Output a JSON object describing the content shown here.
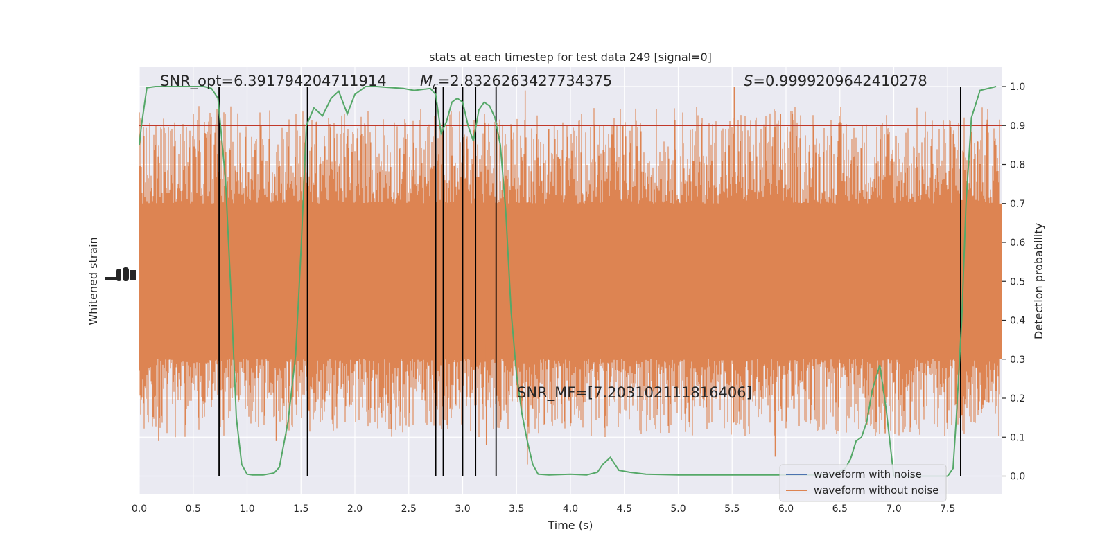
{
  "chart_data": {
    "type": "line",
    "title": "stats at each timestep for test data 249 [signal=0]",
    "xlabel": "Time (s)",
    "ylabel_left": "Whitened strain",
    "ylabel_right": "Detection probability",
    "xlim": [
      0.0,
      8.0
    ],
    "ylim_right": [
      -0.05,
      1.05
    ],
    "x_ticks": [
      "0.0",
      "0.5",
      "1.0",
      "1.5",
      "2.0",
      "2.5",
      "3.0",
      "3.5",
      "4.0",
      "4.5",
      "5.0",
      "5.5",
      "6.0",
      "6.5",
      "7.0",
      "7.5"
    ],
    "x_tick_values": [
      0.0,
      0.5,
      1.0,
      1.5,
      2.0,
      2.5,
      3.0,
      3.5,
      4.0,
      4.5,
      5.0,
      5.5,
      6.0,
      6.5,
      7.0,
      7.5
    ],
    "y_ticks_right": [
      "0.0",
      "0.1",
      "0.2",
      "0.3",
      "0.4",
      "0.5",
      "0.6",
      "0.7",
      "0.8",
      "0.9",
      "1.0"
    ],
    "y_tick_values_right": [
      0.0,
      0.1,
      0.2,
      0.3,
      0.4,
      0.5,
      0.6,
      0.7,
      0.8,
      0.9,
      1.0
    ],
    "grid": true,
    "legend_position": "lower-right",
    "legend": [
      {
        "label": "waveform with noise",
        "color": "#4c72b0"
      },
      {
        "label": "waveform without noise",
        "color": "#dd8452"
      }
    ],
    "annotations": {
      "snr_opt": "SNR_opt=6.391794204711914",
      "mc_symbol": "M",
      "mc_sub": "c",
      "mc_value": "=2.8326263427734375",
      "s_symbol": "S",
      "s_value": "=0.9999209642410278",
      "snr_mf": "SNR_MF=[7.203102111816406]"
    },
    "threshold": {
      "value": 0.9,
      "color": "#c0392b"
    },
    "vertical_lines_x": [
      0.74,
      1.56,
      2.75,
      2.82,
      3.0,
      3.12,
      3.31,
      7.62
    ],
    "strain_noise_band": {
      "color": "#dd8452",
      "core": [
        0.3,
        0.7
      ],
      "peak_max": 1.0,
      "peak_min": 0.07
    },
    "probability_series": {
      "color": "#55a868",
      "x": [
        0.0,
        0.02,
        0.07,
        0.15,
        0.3,
        0.45,
        0.6,
        0.67,
        0.73,
        0.76,
        0.8,
        0.85,
        0.9,
        0.95,
        1.0,
        1.05,
        1.15,
        1.25,
        1.3,
        1.38,
        1.45,
        1.5,
        1.55,
        1.62,
        1.7,
        1.78,
        1.85,
        1.93,
        2.0,
        2.1,
        2.2,
        2.3,
        2.45,
        2.55,
        2.7,
        2.75,
        2.8,
        2.85,
        2.9,
        2.95,
        3.0,
        3.05,
        3.1,
        3.15,
        3.2,
        3.25,
        3.3,
        3.35,
        3.4,
        3.45,
        3.5,
        3.55,
        3.6,
        3.65,
        3.7,
        3.8,
        4.0,
        4.15,
        4.25,
        4.3,
        4.37,
        4.45,
        4.55,
        4.7,
        5.0,
        5.5,
        6.0,
        6.3,
        6.45,
        6.55,
        6.6,
        6.65,
        6.7,
        6.75,
        6.8,
        6.87,
        6.93,
        7.0,
        7.5,
        7.55,
        7.58,
        7.63,
        7.67,
        7.72,
        7.8,
        7.95
      ],
      "y": [
        0.85,
        0.9,
        0.997,
        1.0,
        1.0,
        1.0,
        1.0,
        0.995,
        0.97,
        0.88,
        0.76,
        0.47,
        0.15,
        0.03,
        0.005,
        0.003,
        0.003,
        0.008,
        0.023,
        0.14,
        0.31,
        0.58,
        0.9,
        0.945,
        0.925,
        0.97,
        0.988,
        0.93,
        0.98,
        1.0,
        1.0,
        0.998,
        0.995,
        0.99,
        0.995,
        0.98,
        0.88,
        0.91,
        0.96,
        0.97,
        0.96,
        0.9,
        0.86,
        0.94,
        0.96,
        0.95,
        0.92,
        0.85,
        0.68,
        0.42,
        0.26,
        0.16,
        0.09,
        0.03,
        0.005,
        0.003,
        0.005,
        0.003,
        0.01,
        0.03,
        0.048,
        0.015,
        0.01,
        0.005,
        0.003,
        0.003,
        0.003,
        0.003,
        0.005,
        0.02,
        0.045,
        0.09,
        0.1,
        0.14,
        0.22,
        0.285,
        0.17,
        0.0,
        0.0,
        0.02,
        0.15,
        0.4,
        0.7,
        0.92,
        0.99,
        1.0
      ]
    }
  }
}
